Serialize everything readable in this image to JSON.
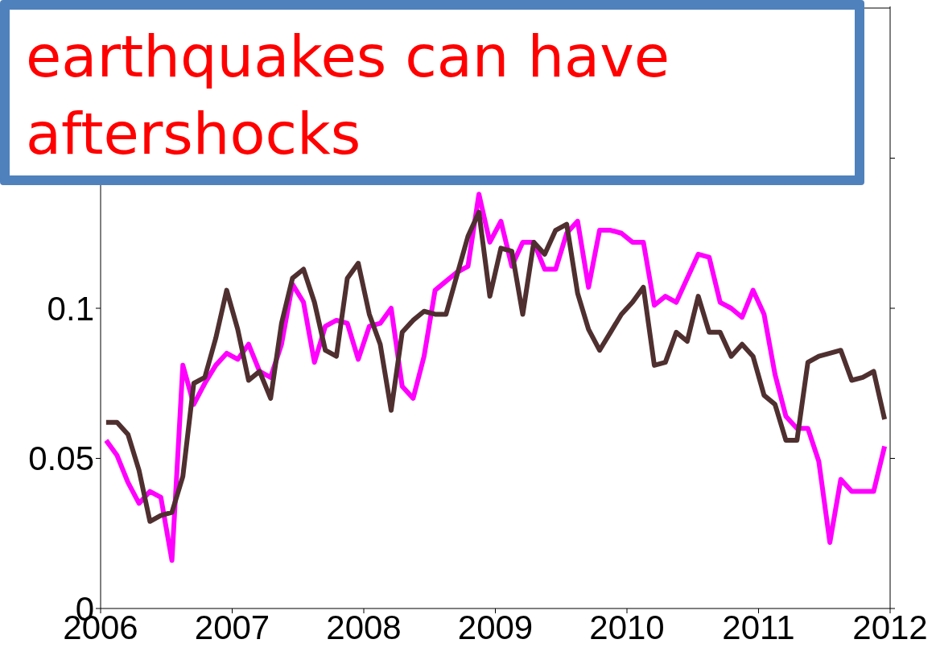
{
  "chart_data": {
    "type": "line",
    "x": [
      2006.042,
      2006.125,
      2006.208,
      2006.292,
      2006.375,
      2006.458,
      2006.542,
      2006.625,
      2006.708,
      2006.792,
      2006.875,
      2006.958,
      2007.042,
      2007.125,
      2007.208,
      2007.292,
      2007.375,
      2007.458,
      2007.542,
      2007.625,
      2007.708,
      2007.792,
      2007.875,
      2007.958,
      2008.042,
      2008.125,
      2008.208,
      2008.292,
      2008.375,
      2008.458,
      2008.542,
      2008.625,
      2008.708,
      2008.792,
      2008.875,
      2008.958,
      2009.042,
      2009.125,
      2009.208,
      2009.292,
      2009.375,
      2009.458,
      2009.542,
      2009.625,
      2009.708,
      2009.792,
      2009.875,
      2009.958,
      2010.042,
      2010.125,
      2010.208,
      2010.292,
      2010.375,
      2010.458,
      2010.542,
      2010.625,
      2010.708,
      2010.792,
      2010.875,
      2010.958,
      2011.042,
      2011.125,
      2011.208,
      2011.292,
      2011.375,
      2011.458,
      2011.542,
      2011.625,
      2011.708,
      2011.792,
      2011.875,
      2011.958
    ],
    "series": [
      {
        "color": "#ff00ff",
        "values": [
          0.056,
          0.051,
          0.042,
          0.035,
          0.039,
          0.037,
          0.016,
          0.081,
          0.068,
          0.075,
          0.081,
          0.085,
          0.083,
          0.088,
          0.079,
          0.077,
          0.088,
          0.108,
          0.102,
          0.082,
          0.094,
          0.096,
          0.095,
          0.083,
          0.094,
          0.095,
          0.1,
          0.074,
          0.07,
          0.084,
          0.106,
          0.109,
          0.112,
          0.114,
          0.138,
          0.122,
          0.129,
          0.114,
          0.122,
          0.122,
          0.113,
          0.113,
          0.125,
          0.129,
          0.107,
          0.126,
          0.126,
          0.125,
          0.122,
          0.122,
          0.101,
          0.104,
          0.102,
          0.11,
          0.118,
          0.117,
          0.102,
          0.1,
          0.097,
          0.106,
          0.098,
          0.078,
          0.064,
          0.06,
          0.06,
          0.049,
          0.022,
          0.043,
          0.039,
          0.039,
          0.039,
          0.054
        ]
      },
      {
        "color": "#4f2f2f",
        "values": [
          0.062,
          0.062,
          0.058,
          0.046,
          0.029,
          0.031,
          0.032,
          0.044,
          0.075,
          0.077,
          0.09,
          0.106,
          0.093,
          0.076,
          0.079,
          0.07,
          0.095,
          0.11,
          0.113,
          0.102,
          0.086,
          0.084,
          0.11,
          0.115,
          0.098,
          0.088,
          0.066,
          0.092,
          0.096,
          0.099,
          0.098,
          0.098,
          0.111,
          0.124,
          0.132,
          0.104,
          0.12,
          0.119,
          0.098,
          0.122,
          0.118,
          0.126,
          0.128,
          0.105,
          0.093,
          0.086,
          0.092,
          0.098,
          0.102,
          0.107,
          0.081,
          0.082,
          0.092,
          0.089,
          0.104,
          0.092,
          0.092,
          0.084,
          0.088,
          0.084,
          0.071,
          0.068,
          0.056,
          0.056,
          0.082,
          0.084,
          0.085,
          0.086,
          0.076,
          0.077,
          0.079,
          0.063
        ]
      }
    ],
    "xlim": [
      2006,
      2012
    ],
    "xticks": [
      2006,
      2007,
      2008,
      2009,
      2010,
      2011,
      2012
    ],
    "ylim": [
      0,
      0.2
    ],
    "yticks": [
      0,
      0.05,
      0.1,
      {
        "value": 0.15,
        "label": null
      }
    ],
    "annotations": [
      "earthquakes can have aftershocks"
    ]
  }
}
